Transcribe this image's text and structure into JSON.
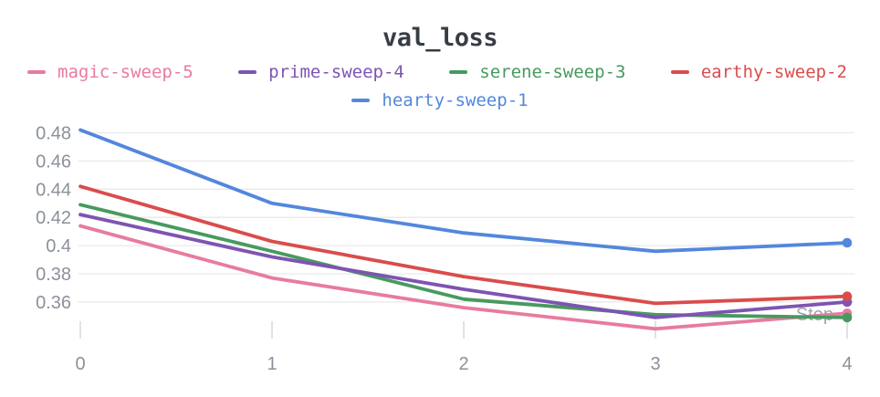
{
  "chart": {
    "title": "val_loss",
    "x_axis_label": "Step"
  },
  "chart_data": {
    "type": "line",
    "title": "val_loss",
    "xlabel": "Step",
    "ylabel": "",
    "x": [
      0,
      1,
      2,
      3,
      4
    ],
    "x_tick_labels": [
      "0",
      "1",
      "2",
      "3",
      "4"
    ],
    "y_ticks": [
      0.48,
      0.46,
      0.44,
      0.42,
      0.4,
      0.38,
      0.36
    ],
    "y_tick_labels": [
      "0.48",
      "0.46",
      "0.44",
      "0.42",
      "0.4",
      "0.38",
      "0.36"
    ],
    "xlim": [
      0,
      4
    ],
    "ylim": [
      0.335,
      0.488
    ],
    "grid": "horizontal",
    "legend_position": "top",
    "end_markers": true,
    "series": [
      {
        "name": "magic-sweep-5",
        "color": "#E87B9F",
        "values": [
          0.414,
          0.377,
          0.356,
          0.341,
          0.352
        ]
      },
      {
        "name": "prime-sweep-4",
        "color": "#7D54B2",
        "values": [
          0.422,
          0.392,
          0.369,
          0.349,
          0.36
        ]
      },
      {
        "name": "serene-sweep-3",
        "color": "#479A5F",
        "values": [
          0.429,
          0.396,
          0.362,
          0.351,
          0.349
        ]
      },
      {
        "name": "earthy-sweep-2",
        "color": "#DA4C4C",
        "values": [
          0.442,
          0.403,
          0.378,
          0.359,
          0.364
        ]
      },
      {
        "name": "hearty-sweep-1",
        "color": "#5387DD",
        "values": [
          0.482,
          0.43,
          0.409,
          0.396,
          0.402
        ]
      }
    ]
  },
  "colors": {
    "grid_line": "#e9e9e9",
    "tick_mark": "#dadada",
    "axis_text": "#8b919b",
    "step_text": "#9fa4ab",
    "title_text": "#373d45"
  }
}
